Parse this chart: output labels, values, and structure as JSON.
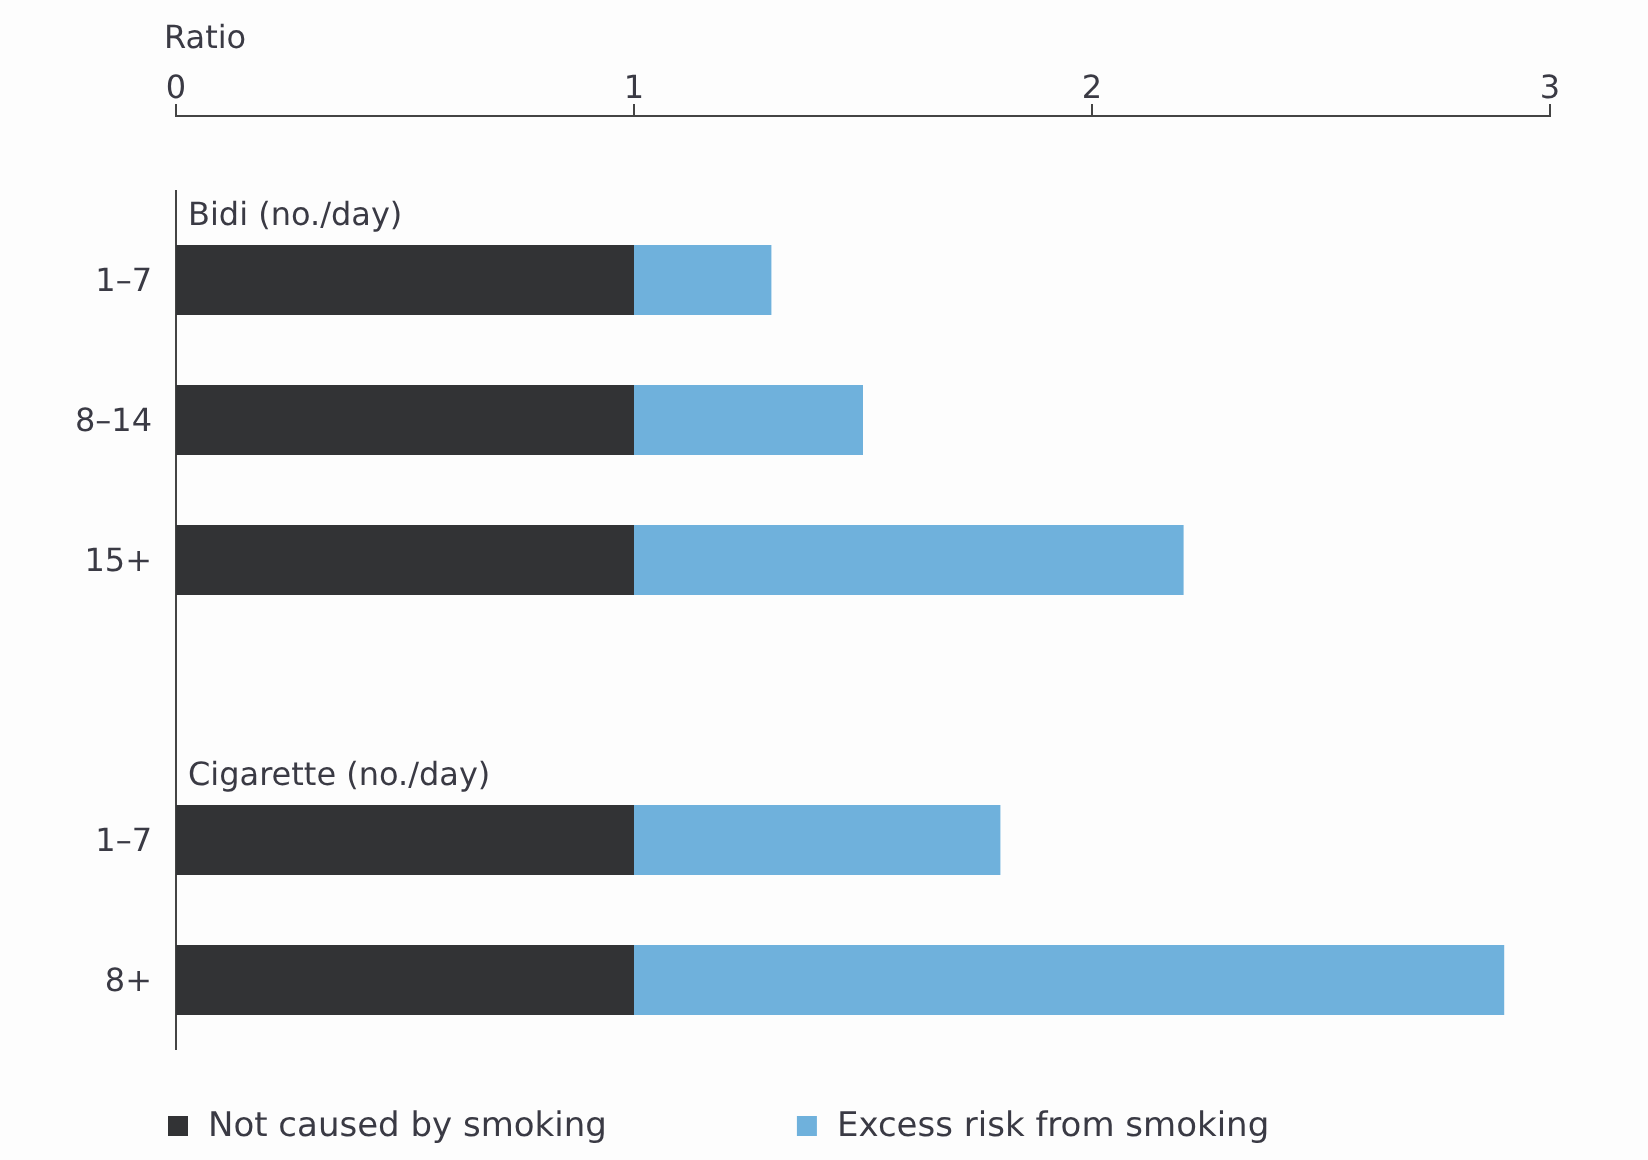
{
  "chart_data": {
    "type": "bar",
    "orientation": "horizontal",
    "stacked": true,
    "xlabel": "Ratio",
    "categories": [
      "1–7",
      "8–14",
      "15+",
      null,
      "1–7",
      "8+"
    ],
    "series": [
      {
        "name": "Not caused by smoking",
        "color": "#323335",
        "values": [
          1,
          1,
          1,
          null,
          1,
          1
        ]
      },
      {
        "name": "Excess risk from smoking",
        "color": "#6fb1dc",
        "values": [
          0.3,
          0.5,
          1.2,
          null,
          0.8,
          1.9
        ]
      }
    ],
    "annotations": [
      "Bidi (no./day)",
      "Cigarette (no./day)"
    ],
    "xlim": [
      0,
      3
    ],
    "xticks": [
      0,
      1,
      2,
      3
    ],
    "grid": false,
    "legend": "bottom"
  }
}
